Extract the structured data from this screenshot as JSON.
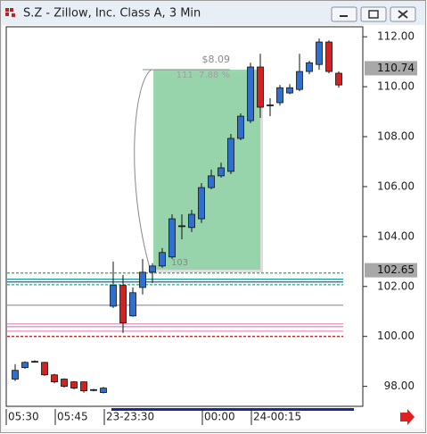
{
  "chart_data": {
    "type": "candlestick",
    "title": "S.Z - Zillow, Inc. Class A, 3 Min",
    "categories": [
      "05:30",
      null,
      null,
      null,
      null,
      "05:45",
      null,
      null,
      null,
      null,
      "23-23:30",
      null,
      null,
      null,
      null,
      null,
      null,
      null,
      null,
      null,
      "00:00",
      null,
      null,
      null,
      null,
      "24-00:15",
      null,
      null,
      null,
      null,
      null,
      null,
      null,
      null
    ],
    "open": [
      98.29,
      98.75,
      98.99,
      98.96,
      98.46,
      98.29,
      98.18,
      98.18,
      97.86,
      97.75,
      101.21,
      102.04,
      100.82,
      101.96,
      102.57,
      102.82,
      103.18,
      104.4,
      104.36,
      104.71,
      105.96,
      106.43,
      106.61,
      107.93,
      108.64,
      110.79,
      109.25,
      109.36,
      109.75,
      109.89,
      110.61,
      110.89,
      111.79,
      110.54
    ],
    "high": [
      98.89,
      99.0,
      99.04,
      98.98,
      98.5,
      98.32,
      98.21,
      98.2,
      97.9,
      97.98,
      103.0,
      102.46,
      101.96,
      103.1,
      102.93,
      103.54,
      104.89,
      104.89,
      105.07,
      106.14,
      106.68,
      106.96,
      108.11,
      108.93,
      110.96,
      111.32,
      109.54,
      110.07,
      110.1,
      111.32,
      111.04,
      111.93,
      111.86,
      110.61
    ],
    "low": [
      98.21,
      98.7,
      98.95,
      98.42,
      98.12,
      97.95,
      97.88,
      97.75,
      97.8,
      97.72,
      101.14,
      100.14,
      100.79,
      101.68,
      102.14,
      102.75,
      103.11,
      103.89,
      104.18,
      104.54,
      105.89,
      106.36,
      106.5,
      107.86,
      108.54,
      108.75,
      108.82,
      109.25,
      109.7,
      109.82,
      110.5,
      110.68,
      110.54,
      109.96
    ],
    "close": [
      98.64,
      98.96,
      99.0,
      98.46,
      98.18,
      98.0,
      97.93,
      97.82,
      97.87,
      97.93,
      102.04,
      100.54,
      101.75,
      102.57,
      102.82,
      103.36,
      104.71,
      104.43,
      104.89,
      105.96,
      106.43,
      106.75,
      107.93,
      108.82,
      110.79,
      109.18,
      109.27,
      109.96,
      109.96,
      110.61,
      110.96,
      111.79,
      110.61,
      110.07
    ],
    "up_color": "#2f6fd0",
    "down_color": "#d42222",
    "ylim": [
      97.2,
      112.4
    ],
    "yticks": [
      {
        "value": 98,
        "label": "98.00"
      },
      {
        "value": 100,
        "label": "100.00"
      },
      {
        "value": 102,
        "label": "102.00"
      },
      {
        "value": 104,
        "label": "104.00"
      },
      {
        "value": 106,
        "label": "106.00"
      },
      {
        "value": 108,
        "label": "108.00"
      },
      {
        "value": 110,
        "label": "110.00"
      },
      {
        "value": 112,
        "label": "112.00"
      }
    ],
    "levels": [
      {
        "value": 102.54,
        "color": "#3cb371",
        "style": "dashed"
      },
      {
        "value": 102.29,
        "color": "#1fa0a0",
        "style": "solid"
      },
      {
        "value": 102.18,
        "color": "#2060c0",
        "style": "solid"
      },
      {
        "value": 102.07,
        "color": "#3cb371",
        "style": "dashed"
      },
      {
        "value": 101.25,
        "color": "#999999",
        "style": "solid"
      },
      {
        "value": 100.5,
        "color": "#e090c0",
        "style": "solid"
      },
      {
        "value": 100.39,
        "color": "#e090c0",
        "style": "solid"
      },
      {
        "value": 100.21,
        "color": "#e090c0",
        "style": "solid"
      },
      {
        "value": 100.0,
        "color": "#d02020",
        "style": "dashed"
      }
    ],
    "price_markers": [
      110.74,
      102.65
    ],
    "measure": {
      "amount": "$8.09",
      "detail": "111  7.88 %",
      "bars": "103"
    }
  }
}
